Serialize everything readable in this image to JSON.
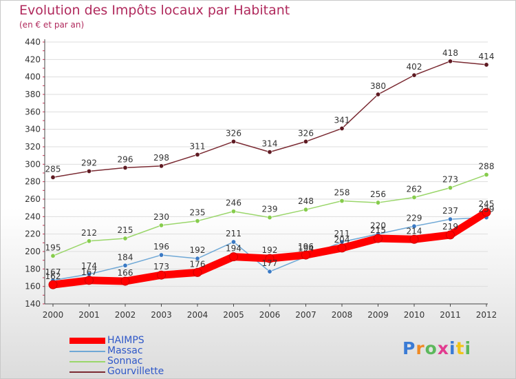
{
  "header": {
    "title": "Evolution des Impôts locaux par Habitant",
    "subtitle": "(en € et par an)"
  },
  "logo": {
    "text": "Proxiti",
    "letter_colors": [
      "#3a7bd5",
      "#f08a24",
      "#5cb85c",
      "#e23b8f",
      "#3a7bd5",
      "#f0c419",
      "#5cb85c"
    ]
  },
  "chart_data": {
    "type": "line",
    "title": "Evolution des Impôts locaux par Habitant",
    "subtitle": "(en € et par an)",
    "xlabel": "",
    "ylabel": "",
    "x": [
      "2000",
      "2001",
      "2002",
      "2003",
      "2004",
      "2005",
      "2006",
      "2007",
      "2008",
      "2009",
      "2010",
      "2011",
      "2012"
    ],
    "ylim": [
      140,
      440
    ],
    "yticks": [
      140,
      160,
      180,
      200,
      220,
      240,
      260,
      280,
      300,
      320,
      340,
      360,
      380,
      400,
      420,
      440
    ],
    "grid": "horizontal",
    "legend": "bottom-left",
    "series": [
      {
        "name": "HAIMPS",
        "color": "#ff0000",
        "marker_color": "#ff0000",
        "width": "thick",
        "values": [
          162,
          167,
          166,
          173,
          176,
          194,
          192,
          196,
          204,
          215,
          214,
          219,
          245
        ]
      },
      {
        "name": "Massac",
        "color": "#6fa8d6",
        "marker_color": "#3a79c4",
        "width": "thin",
        "values": [
          167,
          174,
          184,
          196,
          192,
          211,
          177,
          194,
          211,
          220,
          229,
          237,
          239
        ]
      },
      {
        "name": "Sonnac",
        "color": "#9ad66a",
        "marker_color": "#86cc4c",
        "width": "thin",
        "values": [
          195,
          212,
          215,
          230,
          235,
          246,
          239,
          248,
          258,
          256,
          262,
          273,
          288
        ]
      },
      {
        "name": "Gourvillette",
        "color": "#7a2a32",
        "marker_color": "#5e1a22",
        "width": "thin",
        "values": [
          285,
          292,
          296,
          298,
          311,
          326,
          314,
          326,
          341,
          380,
          402,
          418,
          414
        ]
      }
    ]
  }
}
